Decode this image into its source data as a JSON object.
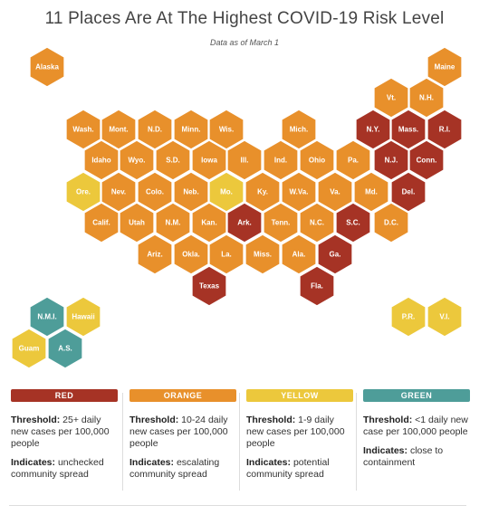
{
  "title": "11 Places Are At The Highest COVID-19 Risk Level",
  "subtitle": "Data as of March 1",
  "colors": {
    "red": "#a63325",
    "orange": "#e8902b",
    "yellow": "#ecc83c",
    "green": "#4e9d99"
  },
  "places": [
    {
      "label": "Alaska",
      "level": "orange"
    },
    {
      "label": "Maine",
      "level": "orange"
    },
    {
      "label": "Vt.",
      "level": "orange"
    },
    {
      "label": "N.H.",
      "level": "orange"
    },
    {
      "label": "Wash.",
      "level": "orange"
    },
    {
      "label": "Mont.",
      "level": "orange"
    },
    {
      "label": "N.D.",
      "level": "orange"
    },
    {
      "label": "Minn.",
      "level": "orange"
    },
    {
      "label": "Wis.",
      "level": "orange"
    },
    {
      "label": "Mich.",
      "level": "orange"
    },
    {
      "label": "N.Y.",
      "level": "red"
    },
    {
      "label": "Mass.",
      "level": "red"
    },
    {
      "label": "R.I.",
      "level": "red"
    },
    {
      "label": "Idaho",
      "level": "orange"
    },
    {
      "label": "Wyo.",
      "level": "orange"
    },
    {
      "label": "S.D.",
      "level": "orange"
    },
    {
      "label": "Iowa",
      "level": "orange"
    },
    {
      "label": "Ill.",
      "level": "orange"
    },
    {
      "label": "Ind.",
      "level": "orange"
    },
    {
      "label": "Ohio",
      "level": "orange"
    },
    {
      "label": "Pa.",
      "level": "orange"
    },
    {
      "label": "N.J.",
      "level": "red"
    },
    {
      "label": "Conn.",
      "level": "red"
    },
    {
      "label": "Ore.",
      "level": "yellow"
    },
    {
      "label": "Nev.",
      "level": "orange"
    },
    {
      "label": "Colo.",
      "level": "orange"
    },
    {
      "label": "Neb.",
      "level": "orange"
    },
    {
      "label": "Mo.",
      "level": "yellow"
    },
    {
      "label": "Ky.",
      "level": "orange"
    },
    {
      "label": "W.Va.",
      "level": "orange"
    },
    {
      "label": "Va.",
      "level": "orange"
    },
    {
      "label": "Md.",
      "level": "orange"
    },
    {
      "label": "Del.",
      "level": "red"
    },
    {
      "label": "Calif.",
      "level": "orange"
    },
    {
      "label": "Utah",
      "level": "orange"
    },
    {
      "label": "N.M.",
      "level": "orange"
    },
    {
      "label": "Kan.",
      "level": "orange"
    },
    {
      "label": "Ark.",
      "level": "red"
    },
    {
      "label": "Tenn.",
      "level": "orange"
    },
    {
      "label": "N.C.",
      "level": "orange"
    },
    {
      "label": "S.C.",
      "level": "red"
    },
    {
      "label": "D.C.",
      "level": "orange"
    },
    {
      "label": "Ariz.",
      "level": "orange"
    },
    {
      "label": "Okla.",
      "level": "orange"
    },
    {
      "label": "La.",
      "level": "orange"
    },
    {
      "label": "Miss.",
      "level": "orange"
    },
    {
      "label": "Ala.",
      "level": "orange"
    },
    {
      "label": "Ga.",
      "level": "red"
    },
    {
      "label": "Texas",
      "level": "red"
    },
    {
      "label": "Fla.",
      "level": "red"
    },
    {
      "label": "N.M.I.",
      "level": "green"
    },
    {
      "label": "Hawaii",
      "level": "yellow"
    },
    {
      "label": "Guam",
      "level": "yellow"
    },
    {
      "label": "A.S.",
      "level": "green"
    },
    {
      "label": "P.R.",
      "level": "yellow"
    },
    {
      "label": "V.I.",
      "level": "yellow"
    }
  ],
  "legend": [
    {
      "name": "RED",
      "level": "red",
      "threshold_label": "Threshold:",
      "threshold": "25+ daily new cases per 100,000 people",
      "indicates_label": "Indicates:",
      "indicates": "unchecked community spread"
    },
    {
      "name": "ORANGE",
      "level": "orange",
      "threshold_label": "Threshold:",
      "threshold": "10-24 daily new cases per 100,000 people",
      "indicates_label": "Indicates:",
      "indicates": "escalating community spread"
    },
    {
      "name": "YELLOW",
      "level": "yellow",
      "threshold_label": "Threshold:",
      "threshold": "1-9 daily new cases per 100,000 people",
      "indicates_label": "Indicates:",
      "indicates": "potential community spread"
    },
    {
      "name": "GREEN",
      "level": "green",
      "threshold_label": "Threshold:",
      "threshold": "<1 daily new case per 100,000 people",
      "indicates_label": "Indicates:",
      "indicates": "close to containment"
    }
  ]
}
